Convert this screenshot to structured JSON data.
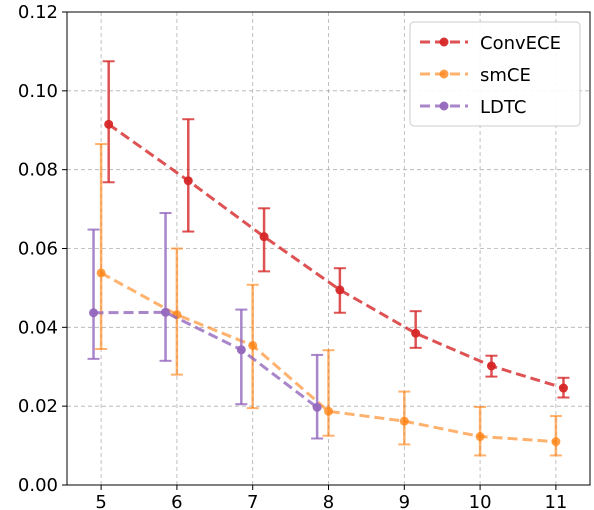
{
  "chart_data": {
    "type": "line",
    "title": "",
    "xlabel": "",
    "ylabel": "",
    "xlim": [
      4.55,
      11.45
    ],
    "ylim": [
      0,
      0.12
    ],
    "xticks": [
      5,
      6,
      7,
      8,
      9,
      10,
      11
    ],
    "xtick_labels": [
      "5",
      "6",
      "7",
      "8",
      "9",
      "10",
      "11"
    ],
    "yticks": [
      0,
      0.02,
      0.04,
      0.06,
      0.08,
      0.1,
      0.12
    ],
    "ytick_labels": [
      "0.00",
      "0.02",
      "0.04",
      "0.06",
      "0.08",
      "0.10",
      "0.12"
    ],
    "grid": true,
    "legend_position": "top-right",
    "series": [
      {
        "name": "ConvECE",
        "color": "#d62728",
        "x": [
          5.1,
          6.15,
          7.15,
          8.15,
          9.15,
          10.15,
          11.1
        ],
        "y": [
          0.0915,
          0.0772,
          0.063,
          0.0495,
          0.0385,
          0.0302,
          0.0246
        ],
        "err_low": [
          0.0768,
          0.0643,
          0.0542,
          0.0437,
          0.0348,
          0.0275,
          0.0222
        ],
        "err_high": [
          0.1075,
          0.0928,
          0.0702,
          0.055,
          0.0441,
          0.0328,
          0.0272
        ]
      },
      {
        "name": "smCE",
        "color": "#ff7f0e",
        "x": [
          5.0,
          6.0,
          7.0,
          8.0,
          9.0,
          10.0,
          11.0
        ],
        "y": [
          0.0538,
          0.0432,
          0.0354,
          0.0187,
          0.0162,
          0.0123,
          0.011
        ],
        "err_low": [
          0.0345,
          0.028,
          0.0195,
          0.0125,
          0.0103,
          0.0075,
          0.0075
        ],
        "err_high": [
          0.0865,
          0.06,
          0.0508,
          0.0342,
          0.0237,
          0.0198,
          0.0175
        ]
      },
      {
        "name": "LDTC",
        "color": "#9467bd",
        "x": [
          4.9,
          5.85,
          6.85,
          7.85
        ],
        "y": [
          0.0437,
          0.0438,
          0.0343,
          0.0197
        ],
        "err_low": [
          0.032,
          0.0315,
          0.0205,
          0.0118
        ],
        "err_high": [
          0.0648,
          0.069,
          0.0445,
          0.033
        ]
      }
    ]
  }
}
